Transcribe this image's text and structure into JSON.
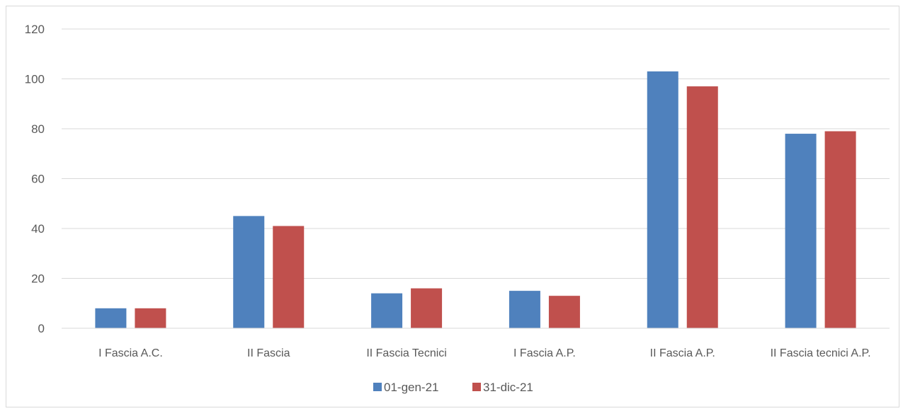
{
  "chart_data": {
    "type": "bar",
    "categories": [
      "I Fascia A.C.",
      "II Fascia",
      "II Fascia Tecnici",
      "I Fascia A.P.",
      "II Fascia A.P.",
      "II Fascia tecnici A.P."
    ],
    "series": [
      {
        "name": "01-gen-21",
        "color": "#4f81bd",
        "values": [
          8,
          45,
          14,
          15,
          103,
          78
        ]
      },
      {
        "name": "31-dic-21",
        "color": "#c0504d",
        "values": [
          8,
          41,
          16,
          13,
          97,
          79
        ]
      }
    ],
    "y_ticks": [
      "0",
      "20",
      "40",
      "60",
      "80",
      "100",
      "120"
    ],
    "ylim": [
      0,
      120
    ],
    "grid": true,
    "legend_position": "bottom"
  }
}
